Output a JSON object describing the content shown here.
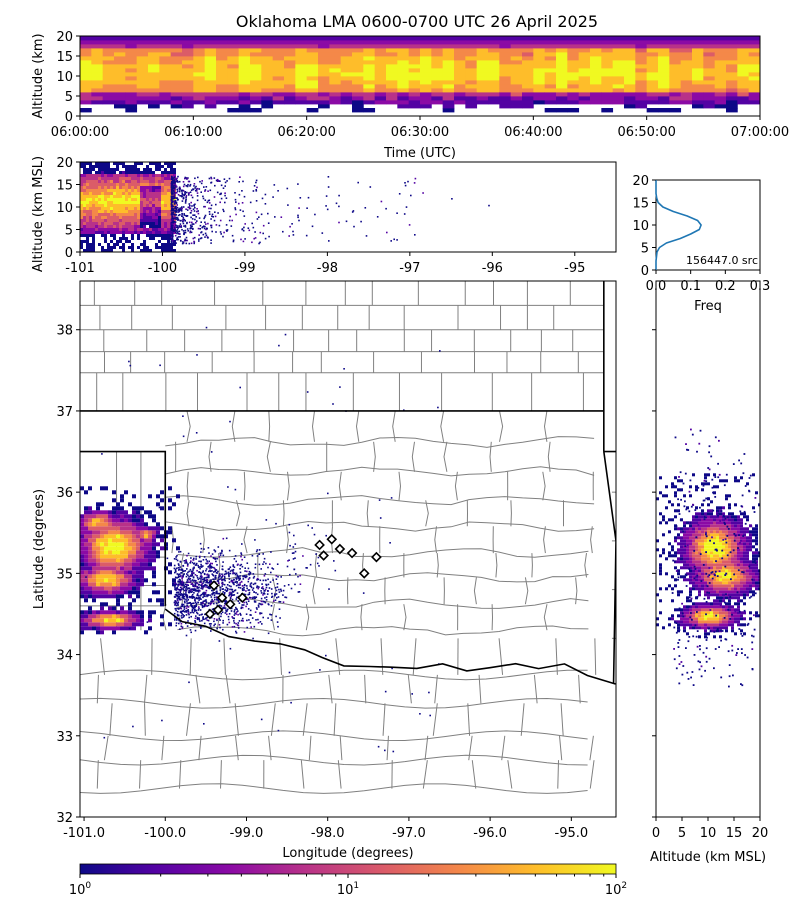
{
  "title": "Oklahoma LMA 0600-0700 UTC 26 April 2025",
  "colors": {
    "cmap": [
      "#0d0887",
      "#5302a3",
      "#8b0aa5",
      "#b83289",
      "#db5c68",
      "#f48849",
      "#febd2a",
      "#f0f921"
    ],
    "hist_line": "#1f77b4",
    "county": "#808080",
    "state": "#000000",
    "station_fill": "#ffffff"
  },
  "chart_data": [
    {
      "type": "heatmap",
      "name": "altitude-time",
      "xlabel": "Time (UTC)",
      "ylabel": "Altitude (km)",
      "xlim": [
        "06:00:00",
        "07:00:00"
      ],
      "ylim": [
        0,
        20
      ],
      "x_tick_labels": [
        "06:00:00",
        "06:10:00",
        "06:20:00",
        "06:30:00",
        "06:40:00",
        "06:50:00",
        "07:00:00"
      ],
      "y_tick_labels": [
        "0",
        "5",
        "10",
        "15",
        "20"
      ],
      "core_altitude_km": [
        6,
        16
      ],
      "peak_altitude_km": 11
    },
    {
      "type": "heatmap",
      "name": "altitude-longitude",
      "xlabel": "",
      "ylabel": "Altitude (km MSL)",
      "xlim": [
        -101,
        -94.5
      ],
      "ylim": [
        0,
        20
      ],
      "x_tick_labels": [
        "-101",
        "-100",
        "-99",
        "-98",
        "-97",
        "-96",
        "-95"
      ],
      "y_tick_labels": [
        "0",
        "5",
        "10",
        "15",
        "20"
      ],
      "dense_longitude_range": [
        -101,
        -99.9
      ],
      "peak_altitude_km": 11
    },
    {
      "type": "line",
      "name": "altitude-histogram",
      "xlabel": "Freq",
      "ylabel": "",
      "xlim": [
        0,
        0.3
      ],
      "ylim": [
        0,
        20
      ],
      "x_tick_labels": [
        "0.0",
        "0.1",
        "0.2",
        "0.3"
      ],
      "y_tick_labels": [
        "0",
        "5",
        "10",
        "15",
        "20"
      ],
      "annotation": "156447.0 src",
      "x": [
        0,
        0,
        0.003,
        0.01,
        0.03,
        0.07,
        0.1,
        0.125,
        0.13,
        0.12,
        0.09,
        0.05,
        0.02,
        0.006,
        0.002,
        0,
        0,
        0
      ],
      "y": [
        0,
        2,
        4,
        5,
        6,
        7,
        8,
        9,
        10,
        11,
        12,
        13,
        14,
        15,
        16,
        17,
        18,
        20
      ]
    },
    {
      "type": "heatmap",
      "name": "plan-view",
      "xlabel": "Longitude (degrees)",
      "ylabel": "Latitude (degrees)",
      "xlim": [
        -101.05,
        -94.45
      ],
      "ylim": [
        32,
        38.6
      ],
      "x_tick_labels": [
        "-101.0",
        "-100.0",
        "-99.0",
        "-98.0",
        "-97.0",
        "-96.0",
        "-95.0"
      ],
      "y_tick_labels": [
        "32",
        "33",
        "34",
        "35",
        "36",
        "37",
        "38"
      ],
      "stations": [
        {
          "lon": -98.1,
          "lat": 35.35
        },
        {
          "lon": -97.95,
          "lat": 35.42
        },
        {
          "lon": -97.85,
          "lat": 35.3
        },
        {
          "lon": -98.05,
          "lat": 35.22
        },
        {
          "lon": -97.7,
          "lat": 35.25
        },
        {
          "lon": -97.4,
          "lat": 35.2
        },
        {
          "lon": -97.55,
          "lat": 35.0
        },
        {
          "lon": -99.4,
          "lat": 34.85
        },
        {
          "lon": -99.3,
          "lat": 34.7
        },
        {
          "lon": -99.35,
          "lat": 34.55
        },
        {
          "lon": -99.05,
          "lat": 34.7
        },
        {
          "lon": -99.45,
          "lat": 34.5
        },
        {
          "lon": -99.2,
          "lat": 34.62
        }
      ]
    },
    {
      "type": "heatmap",
      "name": "latitude-altitude",
      "xlabel": "Altitude (km MSL)",
      "ylabel": "",
      "xlim": [
        0,
        20
      ],
      "ylim": [
        32,
        38.6
      ],
      "x_tick_labels": [
        "0",
        "5",
        "10",
        "15",
        "20"
      ]
    },
    {
      "type": "heatmap",
      "name": "colorbar",
      "scale": "log",
      "range": [
        1,
        100
      ],
      "tick_labels": [
        "10^0",
        "10^1",
        "10^2"
      ]
    }
  ]
}
